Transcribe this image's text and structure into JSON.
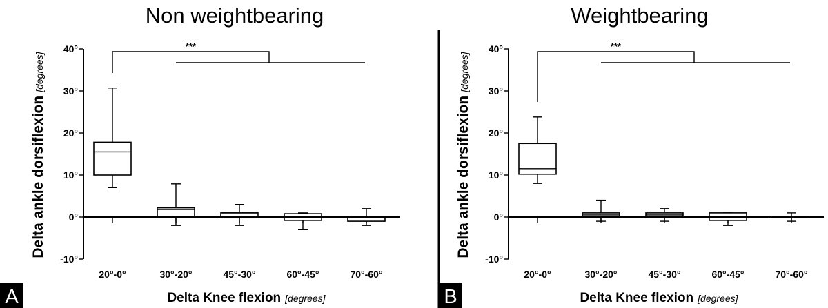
{
  "chart_data": [
    {
      "type": "boxplot",
      "panel": "A",
      "title": "Non weightbearing",
      "ylabel": "Delta ankle dorsiflexion",
      "ylabel_unit": "[degrees]",
      "xlabel": "Delta Knee flexion",
      "xlabel_unit": "[degrees]",
      "ylim": [
        -10,
        40
      ],
      "yticks": [
        -10,
        0,
        10,
        20,
        30,
        40
      ],
      "ytick_labels": [
        "-10°",
        "0°",
        "10°",
        "20°",
        "30°",
        "40°"
      ],
      "categories": [
        "20°-0°",
        "30°-20°",
        "45°-30°",
        "60°-45°",
        "70°-60°"
      ],
      "boxes": [
        {
          "min": 7,
          "q1": 10,
          "median": 15.5,
          "q3": 17.8,
          "max": 30.7
        },
        {
          "min": -2,
          "q1": 0,
          "median": 1.8,
          "q3": 2.2,
          "max": 7.9
        },
        {
          "min": -2,
          "q1": -0.2,
          "median": 1,
          "q3": 1,
          "max": 3
        },
        {
          "min": -3,
          "q1": -0.8,
          "median": 0,
          "q3": 0.8,
          "max": 1
        },
        {
          "min": -2,
          "q1": -1,
          "median": 0,
          "q3": 0,
          "max": 2
        }
      ],
      "significance": {
        "label": "***",
        "from": "20°-0°",
        "to": [
          "30°-20°",
          "45°-30°",
          "60°-45°",
          "70°-60°"
        ]
      }
    },
    {
      "type": "boxplot",
      "panel": "B",
      "title": "Weightbearing",
      "ylabel": "Delta ankle dorsiflexion",
      "ylabel_unit": "[degrees]",
      "xlabel": "Delta Knee flexion",
      "xlabel_unit": "[degrees]",
      "ylim": [
        -10,
        40
      ],
      "yticks": [
        -10,
        0,
        10,
        20,
        30,
        40
      ],
      "ytick_labels": [
        "-10°",
        "0°",
        "10°",
        "20°",
        "30°",
        "40°"
      ],
      "categories": [
        "20°-0°",
        "30°-20°",
        "45°-30°",
        "60°-45°",
        "70°-60°"
      ],
      "boxes": [
        {
          "min": 8,
          "q1": 10.2,
          "median": 11.5,
          "q3": 17.5,
          "max": 23.8
        },
        {
          "min": -1,
          "q1": 0,
          "median": 0.5,
          "q3": 1,
          "max": 4
        },
        {
          "min": -1,
          "q1": 0,
          "median": 0.5,
          "q3": 1,
          "max": 2
        },
        {
          "min": -2,
          "q1": -0.8,
          "median": 0,
          "q3": 1,
          "max": 1
        },
        {
          "min": -1,
          "q1": 0,
          "median": 0,
          "q3": 0,
          "max": 1
        }
      ],
      "significance": {
        "label": "***",
        "from": "20°-0°",
        "to": [
          "30°-20°",
          "45°-30°",
          "60°-45°",
          "70°-60°"
        ]
      }
    }
  ]
}
